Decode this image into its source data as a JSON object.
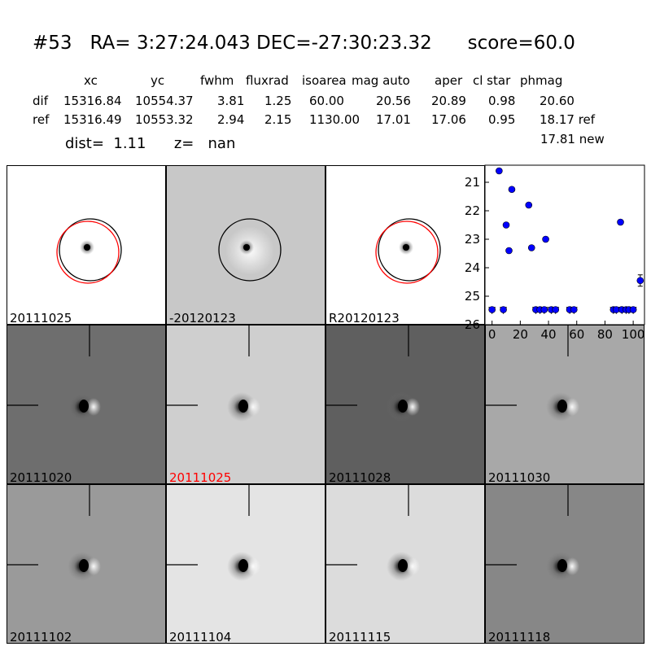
{
  "header": {
    "title": "#53   RA= 3:27:24.043 DEC=-27:30:23.32      score=60.0"
  },
  "table": {
    "columns": [
      "xc",
      "yc",
      "fwhm",
      "fluxrad",
      "isoarea",
      "mag auto",
      "aper",
      "cl star",
      "phmag"
    ],
    "rows": [
      {
        "label": "dif",
        "values": [
          "15316.84",
          "10554.37",
          "3.81",
          "1.25",
          "60.00",
          "20.56",
          "20.89",
          "0.98",
          "20.60"
        ]
      },
      {
        "label": "ref",
        "values": [
          "15316.49",
          "10553.32",
          "2.94",
          "2.15",
          "1130.00",
          "17.01",
          "17.06",
          "0.95",
          "18.17 ref"
        ]
      }
    ],
    "extra": "17.81 new"
  },
  "info": {
    "dist_text": "dist=  1.11",
    "z_text": "z=   nan"
  },
  "panels_top": [
    {
      "label": "20111025",
      "bg": "#ffffff",
      "circles": true
    },
    {
      "label": "-20120123",
      "bg": "#c8c8c8",
      "circles": true
    },
    {
      "label": "R20120123",
      "bg": "#ffffff",
      "circles": true
    }
  ],
  "panels_rows": [
    {
      "label": "20111020",
      "bg": "#6e6e6e",
      "highlight": false
    },
    {
      "label": "20111025",
      "bg": "#cfcfcf",
      "highlight": true
    },
    {
      "label": "20111028",
      "bg": "#5f5f5f",
      "highlight": false
    },
    {
      "label": "20111030",
      "bg": "#a8a8a8",
      "highlight": false
    },
    {
      "label": "20111102",
      "bg": "#9a9a9a",
      "highlight": false
    },
    {
      "label": "20111104",
      "bg": "#e4e4e4",
      "highlight": false
    },
    {
      "label": "20111115",
      "bg": "#dcdcdc",
      "highlight": false
    },
    {
      "label": "20111118",
      "bg": "#878787",
      "highlight": false
    }
  ],
  "chart_data": {
    "type": "scatter",
    "x_ticks": [
      "0",
      "20",
      "40",
      "60",
      "80",
      "100"
    ],
    "y_ticks": [
      "21",
      "22",
      "23",
      "24",
      "25",
      "26"
    ],
    "xlim": [
      -5,
      108
    ],
    "ylim": [
      26,
      20.4
    ],
    "marker_color": "#0000ff",
    "detections": [
      {
        "x": 5,
        "y": 20.6
      },
      {
        "x": 10,
        "y": 22.5
      },
      {
        "x": 12,
        "y": 23.4
      },
      {
        "x": 14,
        "y": 21.25
      },
      {
        "x": 26,
        "y": 21.8
      },
      {
        "x": 28,
        "y": 23.3
      },
      {
        "x": 38,
        "y": 23.0
      },
      {
        "x": 91,
        "y": 22.4
      },
      {
        "x": 105,
        "y": 24.45,
        "err": 0.2
      }
    ],
    "upper_limits": [
      {
        "x": 0,
        "y": 25.5
      },
      {
        "x": 8,
        "y": 25.5
      },
      {
        "x": 31,
        "y": 25.5
      },
      {
        "x": 34,
        "y": 25.5
      },
      {
        "x": 37,
        "y": 25.5
      },
      {
        "x": 42,
        "y": 25.5
      },
      {
        "x": 45,
        "y": 25.5
      },
      {
        "x": 55,
        "y": 25.5
      },
      {
        "x": 58,
        "y": 25.5
      },
      {
        "x": 86,
        "y": 25.5
      },
      {
        "x": 88,
        "y": 25.5
      },
      {
        "x": 92,
        "y": 25.5
      },
      {
        "x": 95,
        "y": 25.5
      },
      {
        "x": 97,
        "y": 25.5
      },
      {
        "x": 100,
        "y": 25.5
      }
    ]
  }
}
